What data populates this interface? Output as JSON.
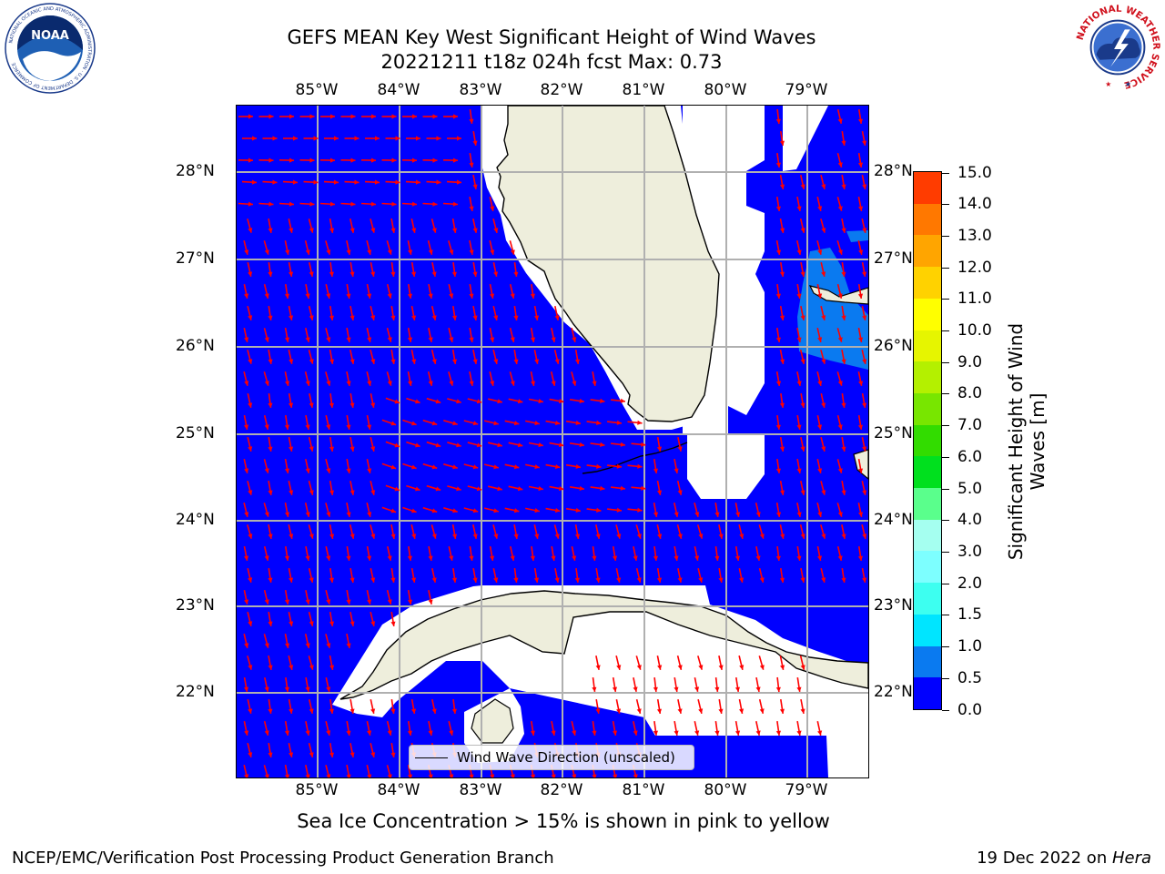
{
  "header": {
    "title_line1": "GEFS MEAN Key West Significant Height of Wind Waves",
    "title_line2": "20221211 t18z 024h fcst   Max: 0.73"
  },
  "map": {
    "lon_labels": [
      "85°W",
      "84°W",
      "83°W",
      "82°W",
      "81°W",
      "80°W",
      "79°W"
    ],
    "lat_labels": [
      "28°N",
      "27°N",
      "26°N",
      "25°N",
      "24°N",
      "23°N",
      "22°N"
    ],
    "legend_label": "Wind Wave Direction (unscaled)",
    "ocean_color": "#0000ff",
    "land_color": "#eeeedc",
    "arrow_color": "#ff0000"
  },
  "colorbar": {
    "title": "Significant Height of Wind Waves [m]",
    "tick_labels": [
      "0.0",
      "0.5",
      "1.0",
      "1.5",
      "2.0",
      "3.0",
      "4.0",
      "5.0",
      "6.0",
      "7.0",
      "8.0",
      "9.0",
      "10.0",
      "11.0",
      "12.0",
      "13.0",
      "14.0",
      "15.0"
    ],
    "colors": [
      "#0000ff",
      "#0a7af0",
      "#00e5ff",
      "#3dfff0",
      "#7dffff",
      "#a5fff0",
      "#5aff8c",
      "#00e01e",
      "#32dc00",
      "#78e600",
      "#b4f000",
      "#e6f500",
      "#ffff00",
      "#ffd200",
      "#ffa500",
      "#ff7800",
      "#ff3c00",
      "#ff0000"
    ]
  },
  "footer": {
    "note": "Sea Ice Concentration > 15% is shown in pink to yellow",
    "left": "NCEP/EMC/Verification Post Processing Product Generation Branch",
    "right_date": "19 Dec 2022 on ",
    "right_machine": "Hera"
  },
  "logos": {
    "noaa_text": "NOAA",
    "noaa_ring": "NATIONAL OCEANIC AND ATMOSPHERIC ADMINISTRATION · U.S. DEPARTMENT OF COMMERCE",
    "nws_ring": "NATIONAL WEATHER SERVICE"
  }
}
